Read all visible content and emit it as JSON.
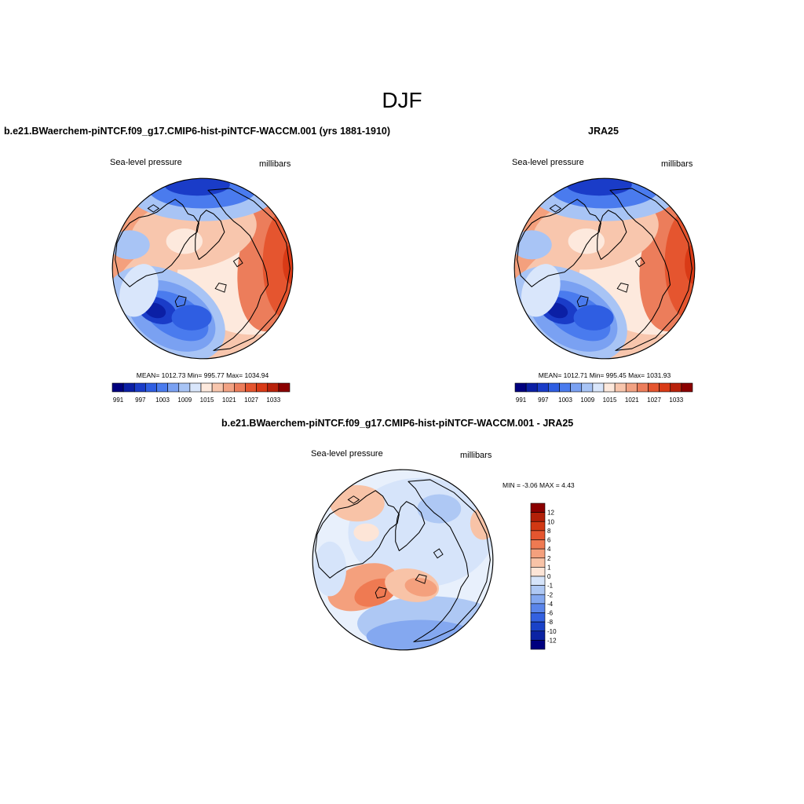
{
  "figure": {
    "title": "DJF"
  },
  "panels": {
    "model": {
      "title": "b.e21.BWaerchem-piNTCF.f09_g17.CMIP6-hist-piNTCF-WACCM.001 (yrs 1881-1910)",
      "left_label": "Sea-level pressure",
      "right_label": "millibars",
      "stats": "MEAN= 1012.73  Min= 995.77  Max= 1034.94"
    },
    "obs": {
      "title": "JRA25",
      "left_label": "Sea-level pressure",
      "right_label": "millibars",
      "stats": "MEAN= 1012.71  Min= 995.45  Max= 1031.93"
    },
    "diff": {
      "title": "b.e21.BWaerchem-piNTCF.f09_g17.CMIP6-hist-piNTCF-WACCM.001 - JRA25",
      "left_label": "Sea-level pressure",
      "right_label": "millibars",
      "stats": "MIN =  -3.06 MAX =   4.43"
    }
  },
  "colorbars": {
    "field": {
      "colors": [
        "#00007f",
        "#0b1fa5",
        "#1a3cc8",
        "#2f5ee2",
        "#4a7bee",
        "#7aa1f2",
        "#a8c4f5",
        "#d9e6fb",
        "#fde9dd",
        "#f8c6ad",
        "#f2a283",
        "#ec7d5b",
        "#e5552f",
        "#d93a16",
        "#b9220b",
        "#8b0000"
      ],
      "ticks": [
        "991",
        "997",
        "1003",
        "1009",
        "1015",
        "1021",
        "1027",
        "1033"
      ]
    },
    "diff": {
      "colors": [
        "#8b0000",
        "#b22008",
        "#d13813",
        "#e5552f",
        "#ef7a52",
        "#f4a07d",
        "#f8c3a7",
        "#fde5d7",
        "#d6e4fa",
        "#aec8f4",
        "#84a8f0",
        "#5a85ea",
        "#3461e0",
        "#1a42c8",
        "#0b23a3",
        "#00007f"
      ],
      "ticks": [
        "12",
        "10",
        "8",
        "6",
        "4",
        "2",
        "1",
        "0",
        "-1",
        "-2",
        "-4",
        "-6",
        "-8",
        "-10",
        "-12"
      ]
    }
  },
  "map_style": {
    "coast_color": "#000000",
    "border_color": "#555555"
  }
}
